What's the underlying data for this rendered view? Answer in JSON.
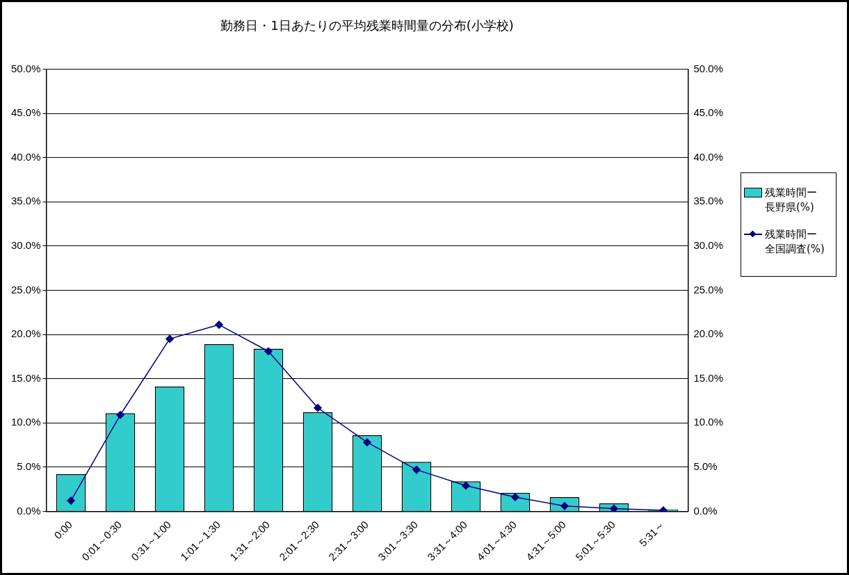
{
  "chart_data": {
    "type": "bar",
    "title": "勤務日・1日あたりの平均残業時間量の分布(小学校)",
    "categories": [
      "0:00",
      "0:01～0:30",
      "0:31～1:00",
      "1:01～1:30",
      "1:31～2:00",
      "2:01～2:30",
      "2:31～3:00",
      "3:01～3:30",
      "3:31～4:00",
      "4:01～4:30",
      "4:31～5:00",
      "5:01～5:30",
      "5:31～"
    ],
    "series": [
      {
        "name": "残業時間ー長野県(%)",
        "color": "#33cccc",
        "values": [
          4.2,
          11.1,
          14.1,
          18.9,
          18.4,
          11.2,
          8.6,
          5.6,
          3.4,
          2.1,
          1.6,
          0.9,
          0.2
        ]
      },
      {
        "name": "残業時間ー全国調査(%)",
        "type": "line",
        "color": "#000080",
        "marker": "diamond",
        "values": [
          1.2,
          10.9,
          19.5,
          21.1,
          18.1,
          11.7,
          7.8,
          4.7,
          2.9,
          1.6,
          0.6,
          0.3,
          0.1
        ]
      }
    ],
    "ylim": [
      0,
      50
    ],
    "yticks": [
      {
        "value": 0,
        "label": "0.0%"
      },
      {
        "value": 5,
        "label": "5.0%"
      },
      {
        "value": 10,
        "label": "10.0%"
      },
      {
        "value": 15,
        "label": "15.0%"
      },
      {
        "value": 20,
        "label": "20.0%"
      },
      {
        "value": 25,
        "label": "25.0%"
      },
      {
        "value": 30,
        "label": "30.0%"
      },
      {
        "value": 35,
        "label": "35.0%"
      },
      {
        "value": 40,
        "label": "40.0%"
      },
      {
        "value": 45,
        "label": "45.0%"
      },
      {
        "value": 50,
        "label": "50.0%"
      }
    ],
    "y2lim": [
      0,
      50
    ],
    "y2ticks": [
      {
        "value": 0,
        "label": "0.0%"
      },
      {
        "value": 5,
        "label": "5.0%"
      },
      {
        "value": 10,
        "label": "10.0%"
      },
      {
        "value": 15,
        "label": "15.0%"
      },
      {
        "value": 20,
        "label": "20.0%"
      },
      {
        "value": 25,
        "label": "25.0%"
      },
      {
        "value": 30,
        "label": "30.0%"
      },
      {
        "value": 35,
        "label": "35.0%"
      },
      {
        "value": 40,
        "label": "40.0%"
      },
      {
        "value": 45,
        "label": "45.0%"
      },
      {
        "value": 50,
        "label": "50.0%"
      }
    ],
    "grid": "y",
    "legend": "right"
  }
}
